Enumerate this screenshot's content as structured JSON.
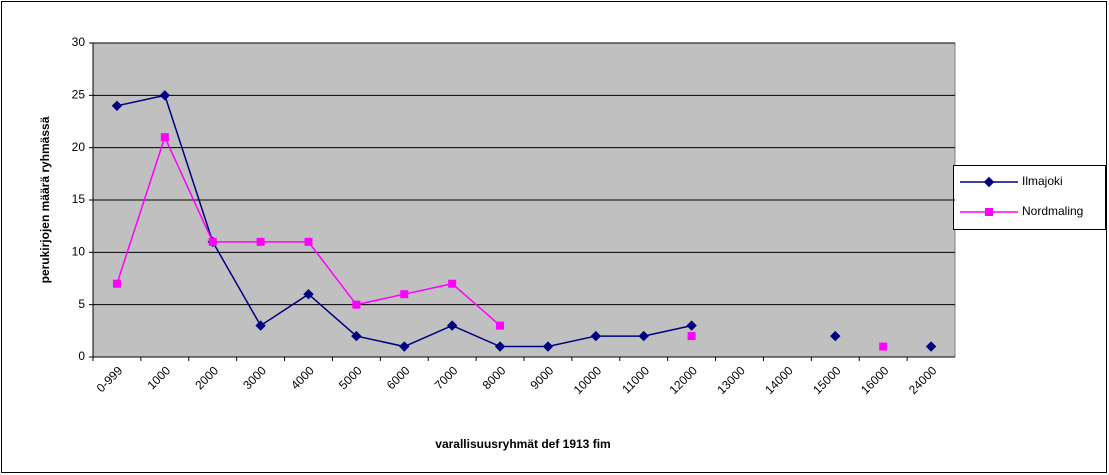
{
  "chart_data": {
    "type": "line",
    "x_label": "varallisuusryhmät def 1913 fim",
    "y_label": "perukirjojen määrä ryhmässä",
    "categories": [
      "0-999",
      "1000",
      "2000",
      "3000",
      "4000",
      "5000",
      "6000",
      "7000",
      "8000",
      "9000",
      "10000",
      "11000",
      "12000",
      "13000",
      "14000",
      "15000",
      "16000",
      "24000"
    ],
    "series": [
      {
        "name": "Ilmajoki",
        "color": "#000080",
        "marker": "diamond",
        "values": [
          24,
          25,
          11,
          3,
          6,
          2,
          1,
          3,
          1,
          1,
          2,
          2,
          3,
          null,
          null,
          2,
          null,
          1
        ]
      },
      {
        "name": "Nordmaling",
        "color": "#ff00ff",
        "marker": "square",
        "values": [
          7,
          21,
          11,
          11,
          11,
          5,
          6,
          7,
          3,
          null,
          null,
          null,
          2,
          null,
          null,
          null,
          1,
          null
        ]
      }
    ],
    "ylim": [
      0,
      30
    ],
    "yticks": [
      0,
      5,
      10,
      15,
      20,
      25,
      30
    ],
    "grid": true,
    "legend": "right"
  }
}
